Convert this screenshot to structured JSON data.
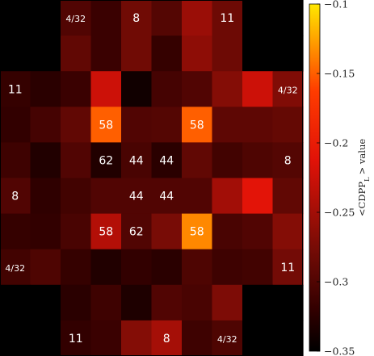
{
  "chart_data": {
    "type": "heatmap",
    "colorbar": {
      "label": "<CDPP_L> value",
      "label_main": "<CDPP",
      "label_sub": "L",
      "label_tail": "> value",
      "range": [
        -0.35,
        -0.1
      ],
      "ticks": [
        -0.1,
        -0.15,
        -0.2,
        -0.25,
        -0.3,
        -0.35
      ],
      "tick_labels": [
        "−0.1",
        "−0.15",
        "−0.2",
        "−0.25",
        "−0.3",
        "−0.35"
      ],
      "colormap": "hot"
    },
    "values": [
      [
        null,
        null,
        -0.3,
        -0.315,
        -0.28,
        -0.298,
        -0.255,
        -0.282,
        null,
        null
      ],
      [
        null,
        null,
        -0.29,
        -0.315,
        -0.28,
        -0.318,
        -0.262,
        -0.282,
        null,
        null
      ],
      [
        -0.318,
        -0.325,
        -0.315,
        -0.225,
        -0.34,
        -0.308,
        -0.3,
        -0.268,
        -0.225,
        -0.27
      ],
      [
        -0.32,
        -0.308,
        -0.29,
        -0.15,
        -0.3,
        -0.298,
        -0.15,
        -0.292,
        -0.292,
        -0.288
      ],
      [
        -0.312,
        -0.33,
        -0.3,
        -0.33,
        -0.305,
        -0.325,
        -0.29,
        -0.31,
        -0.302,
        -0.298
      ],
      [
        -0.3,
        -0.322,
        -0.31,
        -0.3,
        -0.3,
        -0.3,
        -0.3,
        -0.25,
        -0.21,
        -0.29
      ],
      [
        -0.318,
        -0.32,
        -0.305,
        -0.24,
        -0.3,
        -0.275,
        -0.135,
        -0.305,
        -0.3,
        -0.268
      ],
      [
        -0.31,
        -0.302,
        -0.318,
        -0.33,
        -0.32,
        -0.325,
        -0.302,
        -0.312,
        -0.31,
        -0.278
      ],
      [
        null,
        null,
        -0.325,
        -0.312,
        -0.332,
        -0.3,
        -0.305,
        -0.272,
        null,
        null
      ],
      [
        null,
        null,
        -0.32,
        -0.315,
        -0.268,
        -0.248,
        -0.312,
        -0.302,
        null,
        null
      ]
    ],
    "cell_labels": [
      {
        "row": 0,
        "col": 2,
        "text": "4/32"
      },
      {
        "row": 0,
        "col": 4,
        "text": "8"
      },
      {
        "row": 0,
        "col": 7,
        "text": "11"
      },
      {
        "row": 2,
        "col": 0,
        "text": "11"
      },
      {
        "row": 2,
        "col": 9,
        "text": "4/32"
      },
      {
        "row": 3,
        "col": 3,
        "text": "58"
      },
      {
        "row": 3,
        "col": 6,
        "text": "58"
      },
      {
        "row": 4,
        "col": 3,
        "text": "62"
      },
      {
        "row": 4,
        "col": 4,
        "text": "44"
      },
      {
        "row": 4,
        "col": 5,
        "text": "44"
      },
      {
        "row": 4,
        "col": 9,
        "text": "8"
      },
      {
        "row": 5,
        "col": 0,
        "text": "8"
      },
      {
        "row": 5,
        "col": 4,
        "text": "44"
      },
      {
        "row": 5,
        "col": 5,
        "text": "44"
      },
      {
        "row": 6,
        "col": 3,
        "text": "58"
      },
      {
        "row": 6,
        "col": 4,
        "text": "62"
      },
      {
        "row": 6,
        "col": 6,
        "text": "58"
      },
      {
        "row": 7,
        "col": 0,
        "text": "4/32"
      },
      {
        "row": 7,
        "col": 9,
        "text": "11"
      },
      {
        "row": 9,
        "col": 2,
        "text": "11"
      },
      {
        "row": 9,
        "col": 5,
        "text": "8"
      },
      {
        "row": 9,
        "col": 7,
        "text": "4/32"
      }
    ],
    "missing_cell_color": "#000000",
    "grid": false
  }
}
